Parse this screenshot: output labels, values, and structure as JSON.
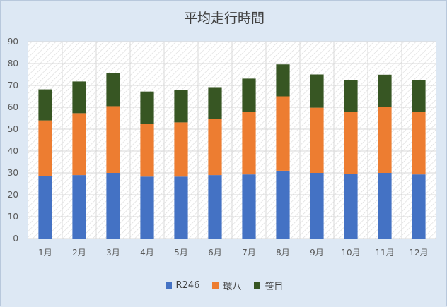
{
  "chart_data": {
    "type": "bar",
    "stacked": true,
    "title": "平均走行時間",
    "categories": [
      "1月",
      "2月",
      "3月",
      "4月",
      "5月",
      "6月",
      "7月",
      "8月",
      "9月",
      "10月",
      "11月",
      "12月"
    ],
    "series": [
      {
        "name": "R246",
        "color": "#4472c4",
        "values": [
          28.5,
          29,
          30,
          28.3,
          28.3,
          29,
          29.3,
          31,
          30,
          29.5,
          30,
          29.3
        ]
      },
      {
        "name": "環八",
        "color": "#ed7d31",
        "values": [
          25.5,
          28.3,
          30.5,
          24.2,
          24.8,
          25.8,
          28.7,
          34,
          29.8,
          28.5,
          30.3,
          28.7
        ]
      },
      {
        "name": "笹目",
        "color": "#375623",
        "values": [
          14.2,
          14.5,
          15,
          14.7,
          14.9,
          14.4,
          15.1,
          14.6,
          15.2,
          14.3,
          14.6,
          14.4
        ]
      }
    ],
    "yticks": [
      0,
      10,
      20,
      30,
      40,
      50,
      60,
      70,
      80,
      90
    ],
    "ylim": [
      0,
      90
    ],
    "grid": true,
    "legend_position": "bottom"
  }
}
